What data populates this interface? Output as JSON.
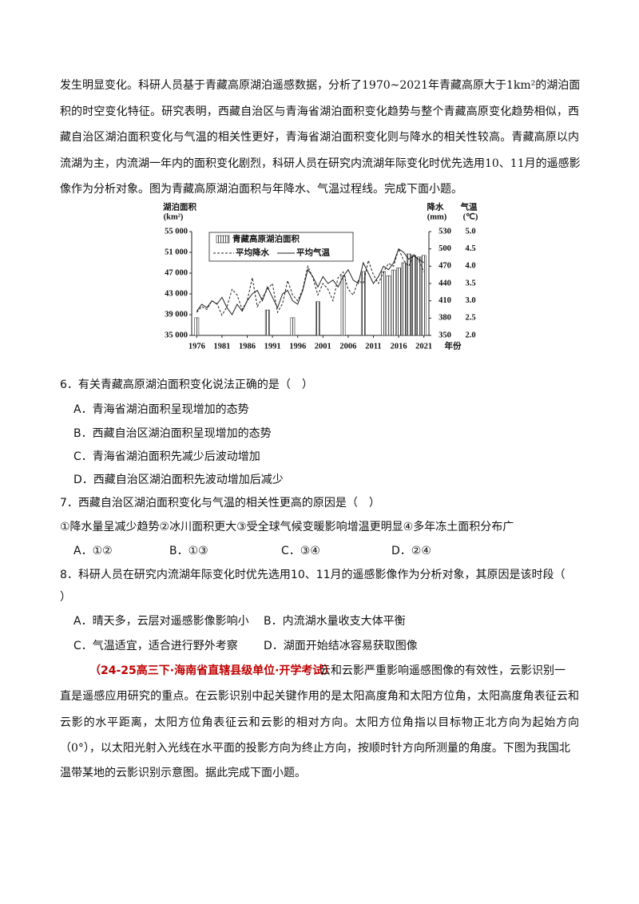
{
  "paragraph1": [
    "发生明显变化。科研人员基于青藏高原湖泊遥感数据，分析了1970~2021年青藏高原大于1km²的湖泊面",
    "积的时空变化特征。研究表明，西藏自治区与青海省湖泊面积变化趋势与整个青藏高原变化趋势相似，西",
    "藏自治区湖泊面积变化与气温的相关性更好，青海省湖泊面积变化则与降水的相关性较高。青藏高原以内",
    "流湖为主，内流湖一年内的面积变化剧烈，科研人员在研究内流湖年际变化时优先选用10、11月的遥感影",
    "像作为分析对象。图为青藏高原湖泊面积与年降水、气温过程线。完成下面小题。"
  ],
  "chart_data": {
    "type": "bar-line",
    "y_title": "湖泊面积",
    "y_unit": "(km²)",
    "y2_title": "降水",
    "y2_unit": "(mm)",
    "y3_title": "气温",
    "y3_unit": "(℃)",
    "x_title": "年份",
    "x": [
      1976,
      1977,
      1978,
      1979,
      1980,
      1981,
      1982,
      1983,
      1984,
      1985,
      1986,
      1987,
      1988,
      1989,
      1990,
      1991,
      1992,
      1993,
      1994,
      1995,
      1996,
      1997,
      1998,
      1999,
      2000,
      2001,
      2002,
      2003,
      2004,
      2005,
      2006,
      2007,
      2008,
      2009,
      2010,
      2011,
      2012,
      2013,
      2014,
      2015,
      2016,
      2017,
      2018,
      2019,
      2020,
      2021
    ],
    "xlim": [
      1975,
      2022
    ],
    "xticks": [
      1976,
      1981,
      1986,
      1991,
      1996,
      2001,
      2006,
      2011,
      2016,
      2021
    ],
    "ylim": [
      35000,
      55000
    ],
    "yticks": [
      {
        "value": 35000,
        "label": "35 000"
      },
      {
        "value": 39000,
        "label": "39 000"
      },
      {
        "value": 43000,
        "label": "43 000"
      },
      {
        "value": 47000,
        "label": "47 000"
      },
      {
        "value": 51000,
        "label": "51 000"
      },
      {
        "value": 55000,
        "label": "55 000"
      }
    ],
    "y2lim": [
      350,
      530
    ],
    "y2ticks": [
      350,
      380,
      410,
      440,
      470,
      500,
      530
    ],
    "y3lim": [
      2.0,
      5.0
    ],
    "y3ticks": [
      {
        "value": 2.0,
        "label": "2.0"
      },
      {
        "value": 2.5,
        "label": "2.5"
      },
      {
        "value": 3.0,
        "label": "3.0"
      },
      {
        "value": 3.5,
        "label": "3.5"
      },
      {
        "value": 4.0,
        "label": "4.0"
      },
      {
        "value": 4.5,
        "label": "4.5"
      },
      {
        "value": 5.0,
        "label": "5.0"
      }
    ],
    "series": [
      {
        "name": "青藏高原湖泊面积",
        "type": "bar",
        "color": "#333333",
        "values": [
          38400,
          null,
          null,
          null,
          null,
          null,
          null,
          null,
          null,
          null,
          null,
          null,
          null,
          null,
          39900,
          null,
          null,
          null,
          null,
          38400,
          null,
          null,
          null,
          null,
          41500,
          null,
          null,
          null,
          null,
          46500,
          null,
          null,
          null,
          47300,
          null,
          null,
          null,
          47300,
          46500,
          47600,
          48000,
          49000,
          50700,
          50400,
          50100,
          50400
        ]
      },
      {
        "name": "平均降水",
        "type": "line",
        "axis": "y2",
        "dash": true,
        "color": "#222222",
        "values": [
          390,
          400,
          395,
          410,
          405,
          385,
          400,
          430,
          420,
          395,
          410,
          450,
          400,
          415,
          430,
          440,
          390,
          405,
          445,
          420,
          410,
          430,
          470,
          450,
          420,
          440,
          430,
          410,
          450,
          460,
          430,
          420,
          445,
          440,
          480,
          455,
          440,
          460,
          475,
          470,
          500,
          480,
          470,
          490,
          480,
          460
        ]
      },
      {
        "name": "平均气温",
        "type": "line",
        "axis": "y3",
        "dash": false,
        "color": "#222222",
        "values": [
          2.7,
          2.9,
          2.8,
          3.0,
          2.9,
          3.1,
          2.8,
          2.6,
          2.9,
          2.7,
          3.0,
          3.2,
          3.3,
          3.0,
          3.4,
          3.1,
          2.8,
          3.2,
          3.3,
          3.0,
          2.9,
          3.3,
          3.9,
          3.7,
          3.4,
          3.7,
          3.5,
          3.6,
          3.4,
          3.7,
          3.9,
          3.6,
          3.5,
          4.1,
          3.8,
          3.5,
          3.7,
          4.0,
          3.9,
          4.1,
          4.5,
          4.4,
          4.2,
          4.3,
          4.2,
          4.1
        ]
      }
    ]
  },
  "questions": [
    {
      "stem": [
        "6．有关青藏高原湖泊面积变化说法正确的是（　）"
      ],
      "options": [
        "A．青海省湖泊面积呈现增加的态势",
        "B．西藏自治区湖泊面积呈现增加的态势",
        "C．青海省湖泊面积先减少后波动增加",
        "D．西藏自治区湖泊面积先波动增加后减少"
      ]
    },
    {
      "stem": [
        "7．西藏自治区湖泊面积变化与气温的相关性更高的原因是（　）",
        "①降水量呈减少趋势②冰川面积更大③受全球气候变暖影响增温更明显④多年冻土面积分布广"
      ],
      "options": [
        "A．①②",
        "B．①③",
        "C．③④",
        "D．②④"
      ]
    },
    {
      "stem": [
        "8．科研人员在研究内流湖年际变化时优先选用10、11月的遥感影像作为分析对象，其原因是该时段（",
        "）"
      ],
      "options": [
        "A．晴天多，云层对遥感影像影响小",
        "B．内流湖水量收支大体平衡",
        "C．气温适宜，适合进行野外考察",
        "D．湖面开始结冰容易获取图像"
      ]
    }
  ],
  "source": "（24-25高三下·海南省直辖县级单位·开学考试）",
  "paragraph2": [
    "云和云影严重影响遥感图像的有效性，云影识别一",
    "直是遥感应用研究的重点。在云影识别中起关键作用的是太阳高度角和太阳方位角，太阳高度角表征云和",
    "云影的水平距离，太阳方位角表征云和云影的相对方向。太阳方位角指以目标物正北方向为起始方向",
    "（0°），以太阳光射入光线在水平面的投影方向为终止方向，按顺时针方向所测量的角度。下图为我国北",
    "温带某地的云影识别示意图。据此完成下面小题。"
  ]
}
